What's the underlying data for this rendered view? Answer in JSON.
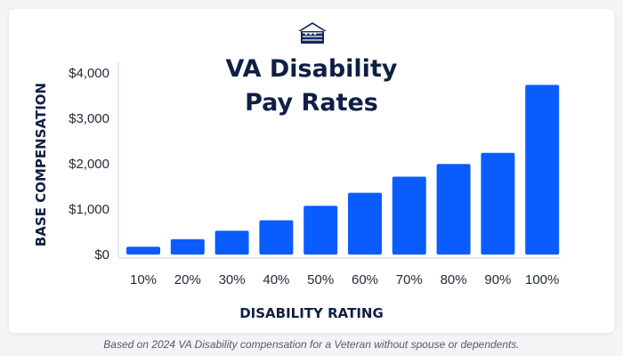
{
  "chart_data": {
    "type": "bar",
    "title": "VA Disability Pay Rates",
    "title_lines": [
      "VA Disability",
      "Pay Rates"
    ],
    "xlabel": "DISABILITY RATING",
    "ylabel": "BASE COMPENSATION",
    "categories": [
      "10%",
      "20%",
      "30%",
      "40%",
      "50%",
      "60%",
      "70%",
      "80%",
      "90%",
      "100%"
    ],
    "values": [
      171,
      338,
      524,
      755,
      1075,
      1361,
      1716,
      1995,
      2241,
      3737
    ],
    "ylim": [
      0,
      4000
    ],
    "yticks": [
      0,
      1000,
      2000,
      3000,
      4000
    ],
    "ytick_labels": [
      "$0",
      "$1,000",
      "$2,000",
      "$3,000",
      "$4,000"
    ],
    "grid": false,
    "bar_color": "#0b5cff"
  },
  "colors": {
    "title": "#0f1f44",
    "logo_navy": "#14275a",
    "axis": "#dce3f0"
  },
  "icons": {
    "logo": "house-flag-logo"
  },
  "footnote": "Based on 2024 VA Disability compensation for a Veteran without spouse or dependents."
}
